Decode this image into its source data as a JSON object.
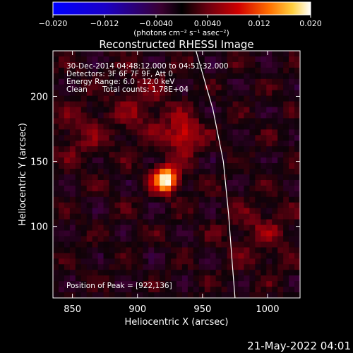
{
  "chart_data": {
    "type": "heatmap",
    "title": "Reconstructed RHESSI Image",
    "xlabel": "Heliocentric X (arcsec)",
    "ylabel": "Heliocentric Y (arcsec)",
    "xlim": [
      835,
      1025
    ],
    "ylim": [
      45,
      235
    ],
    "xticks": [
      850,
      900,
      950,
      1000
    ],
    "yticks": [
      100,
      150,
      200
    ],
    "colorbar": {
      "range": [
        -0.02,
        0.02
      ],
      "ticks": [
        "−0.020",
        "−0.012",
        "−0.0040",
        "0.0040",
        "0.012",
        "0.020"
      ],
      "unit_label": "(photons cm⁻² s⁻¹ asec⁻²)"
    },
    "annotations": {
      "time_range": "30-Dec-2014 04:48:12.000 to 04:51:32.000",
      "detectors": "Detectors: 3F 6F 7F 9F, Att 0",
      "energy": "Energy Range: 6.0 - 12.0 keV",
      "clean": "Clean",
      "counts": "Total counts: 1.78E+04",
      "peak": "Position of Peak = [922,136]"
    },
    "sources": [
      {
        "x": 922,
        "y": 136,
        "peak": 0.02
      },
      {
        "x": 936,
        "y": 170,
        "peak": 0.01
      }
    ],
    "limb_points": [
      [
        945,
        235
      ],
      [
        958,
        190
      ],
      [
        966,
        150
      ],
      [
        970,
        110
      ],
      [
        973,
        70
      ],
      [
        975,
        45
      ]
    ]
  },
  "footer": {
    "timestamp": "21-May-2022 04:01"
  }
}
